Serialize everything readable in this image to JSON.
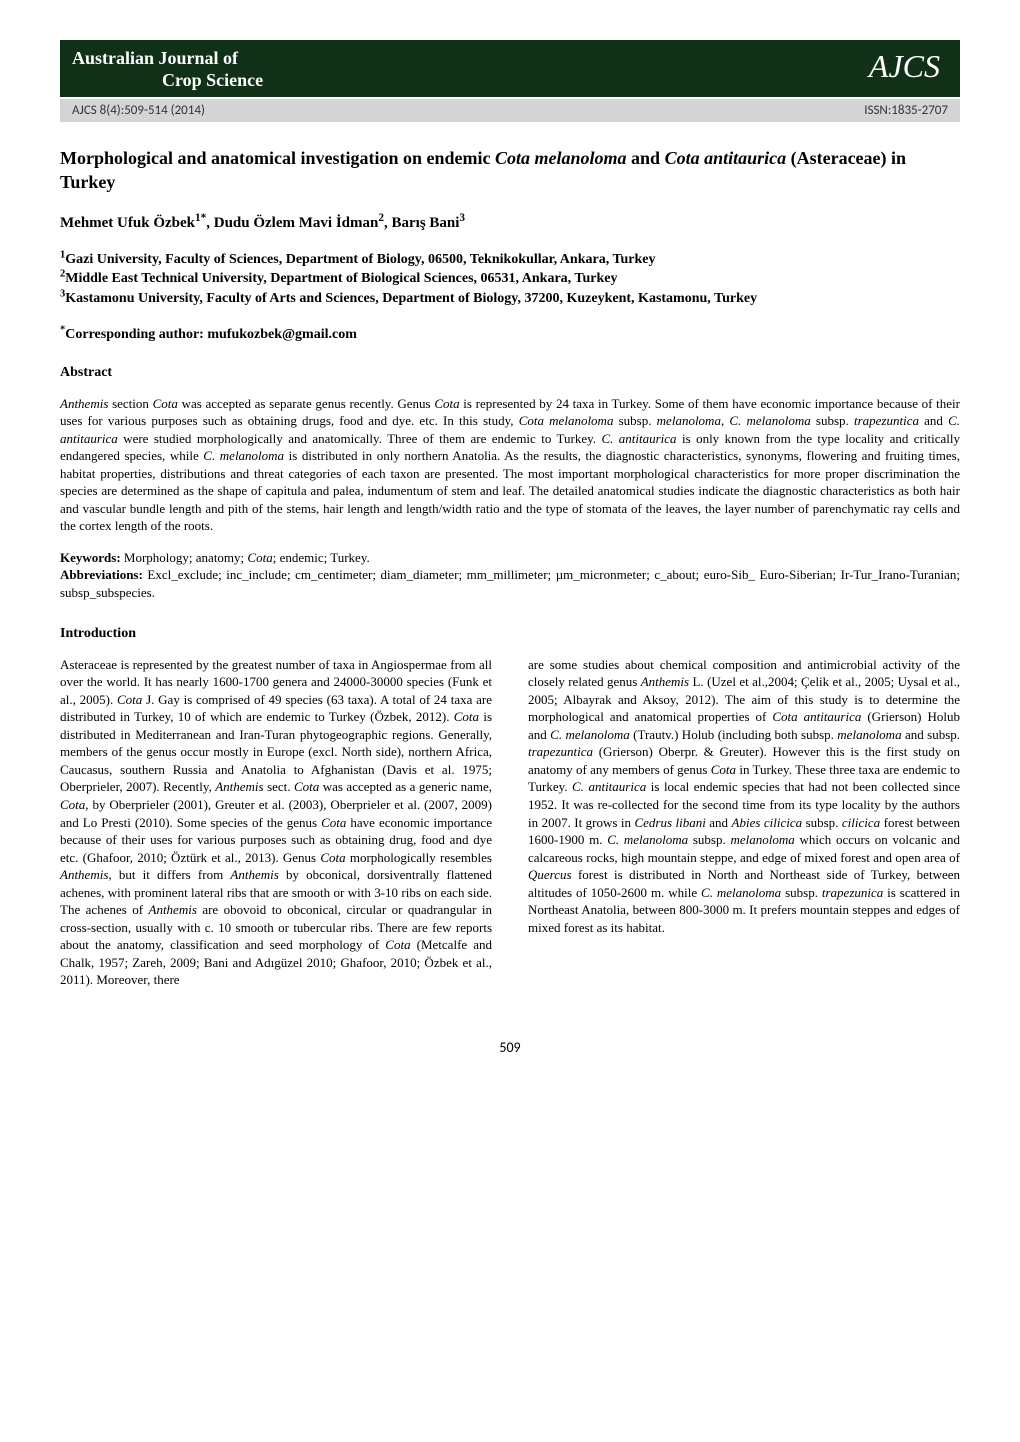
{
  "header": {
    "journal_line1": "Australian Journal of",
    "journal_line2": "Crop Science",
    "journal_abbrev": "AJCS",
    "citation": "AJCS 8(4):509-514 (2014)",
    "issn": "ISSN:1835-2707",
    "band_bg": "#103018",
    "meta_bg": "#d4d4d4"
  },
  "title": {
    "part1": "Morphological and anatomical investigation on endemic ",
    "italic1": "Cota melanoloma",
    "part2": " and ",
    "italic2": "Cota antitaurica",
    "part3": " (Asteraceae) in Turkey"
  },
  "authors": "Mehmet Ufuk Özbek1*, Dudu Özlem Mavi İdman2, Barış Bani3",
  "authors_parts": [
    {
      "text": "Mehmet Ufuk Özbek",
      "sup": "1*"
    },
    {
      "text": ", Dudu Özlem Mavi İdman",
      "sup": "2"
    },
    {
      "text": ", Barış Bani",
      "sup": "3"
    }
  ],
  "affiliations": [
    {
      "sup": "1",
      "text": "Gazi University, Faculty of Sciences, Department of Biology, 06500, Teknikokullar, Ankara, Turkey"
    },
    {
      "sup": "2",
      "text": "Middle East Technical University, Department of Biological Sciences, 06531, Ankara, Turkey"
    },
    {
      "sup": "3",
      "text": "Kastamonu University, Faculty of Arts and Sciences, Department of Biology, 37200, Kuzeykent, Kastamonu, Turkey"
    }
  ],
  "corresponding": {
    "sup": "*",
    "label": "Corresponding author: mufukozbek@gmail.com"
  },
  "abstract": {
    "heading": "Abstract",
    "runs": [
      {
        "i": true,
        "t": "Anthemis"
      },
      {
        "i": false,
        "t": " section "
      },
      {
        "i": true,
        "t": "Cota"
      },
      {
        "i": false,
        "t": " was accepted as separate genus recently. Genus "
      },
      {
        "i": true,
        "t": "Cota"
      },
      {
        "i": false,
        "t": " is represented by 24 taxa in Turkey. Some of them have economic importance because of their uses for various purposes such as obtaining drugs, food and dye. etc. In this study, "
      },
      {
        "i": true,
        "t": "Cota melanoloma"
      },
      {
        "i": false,
        "t": " subsp. "
      },
      {
        "i": true,
        "t": "melanoloma"
      },
      {
        "i": false,
        "t": ", "
      },
      {
        "i": true,
        "t": "C. melanoloma"
      },
      {
        "i": false,
        "t": " subsp. "
      },
      {
        "i": true,
        "t": "trapezuntica"
      },
      {
        "i": false,
        "t": " and "
      },
      {
        "i": true,
        "t": "C. antitaurica"
      },
      {
        "i": false,
        "t": " were studied morphologically and anatomically. Three of them are endemic to Turkey. "
      },
      {
        "i": true,
        "t": "C. antitaurica"
      },
      {
        "i": false,
        "t": " is only known from the type locality and critically endangered species, while "
      },
      {
        "i": true,
        "t": "C. melanoloma"
      },
      {
        "i": false,
        "t": " is distributed in only northern Anatolia. As the results, the diagnostic characteristics, synonyms, flowering and fruiting times, habitat properties, distributions and threat categories of each taxon are presented. The most important morphological characteristics for more proper discrimination the species are determined as the shape of capitula and palea, indumentum of stem and leaf. The detailed anatomical studies indicate the diagnostic characteristics as both hair and vascular bundle length and pith of the stems, hair length and length/width ratio and the type of stomata of the leaves, the layer number of parenchymatic ray cells and the cortex length of the roots."
      }
    ]
  },
  "keywords": {
    "label": "Keywords:",
    "runs": [
      {
        "i": false,
        "t": " Morphology; anatomy; "
      },
      {
        "i": true,
        "t": "Cota"
      },
      {
        "i": false,
        "t": "; endemic; Turkey."
      }
    ]
  },
  "abbreviations": {
    "label": "Abbreviations:",
    "text": " Excl_exclude; inc_include; cm_centimeter; diam_diameter; mm_millimeter; µm_micronmeter; c_about; euro-Sib_ Euro-Siberian; Ir-Tur_Irano-Turanian; subsp_subspecies."
  },
  "introduction": {
    "heading": "Introduction",
    "col1_runs": [
      {
        "i": false,
        "t": "Asteraceae is represented by the greatest number of taxa in Angiospermae from all over the world. It has nearly 1600-1700 genera and 24000-30000 species (Funk et al., 2005). "
      },
      {
        "i": true,
        "t": "Cota"
      },
      {
        "i": false,
        "t": " J. Gay is comprised of 49 species (63 taxa). A total of 24 taxa are distributed in Turkey, 10 of which are endemic to Turkey (Özbek, 2012). "
      },
      {
        "i": true,
        "t": "Cota"
      },
      {
        "i": false,
        "t": " is distributed in Mediterranean and Iran-Turan phytogeographic regions. Generally, members of the genus occur mostly in Europe (excl. North side), northern Africa, Caucasus, southern Russia and Anatolia to Afghanistan (Davis et al. 1975; Oberprieler, 2007). Recently, "
      },
      {
        "i": true,
        "t": "Anthemis"
      },
      {
        "i": false,
        "t": " sect. "
      },
      {
        "i": true,
        "t": "Cota"
      },
      {
        "i": false,
        "t": " was accepted as a generic name, "
      },
      {
        "i": true,
        "t": "Cota"
      },
      {
        "i": false,
        "t": ", by Oberprieler (2001), Greuter et al. (2003), Oberprieler et al. (2007, 2009) and Lo Presti (2010).  Some species of the genus "
      },
      {
        "i": true,
        "t": "Cota"
      },
      {
        "i": false,
        "t": " have economic importance because of their uses for various purposes such as obtaining drug, food and dye etc. (Ghafoor, 2010; Öztürk et al., 2013). Genus "
      },
      {
        "i": true,
        "t": "Cota"
      },
      {
        "i": false,
        "t": " morphologically resembles "
      },
      {
        "i": true,
        "t": "Anthemis"
      },
      {
        "i": false,
        "t": ", but it differs from "
      },
      {
        "i": true,
        "t": "Anthemis"
      },
      {
        "i": false,
        "t": " by obconical, dorsiventrally flattened achenes, with prominent lateral ribs that are smooth or with 3-10 ribs on each side. The achenes of "
      },
      {
        "i": true,
        "t": "Anthemis"
      },
      {
        "i": false,
        "t": " are obovoid to obconical, circular or quadrangular in cross-section, usually with c. 10 smooth or tubercular ribs. There are few reports about the anatomy, classification and seed morphology of "
      },
      {
        "i": true,
        "t": "Cota"
      },
      {
        "i": false,
        "t": " (Metcalfe and Chalk, 1957; Zareh, 2009; Bani and Adıgüzel 2010; Ghafoor, 2010; Özbek et al., 2011). Moreover, there"
      }
    ],
    "col2_runs": [
      {
        "i": false,
        "t": "are some studies about chemical composition and antimicrobial activity of the closely related genus "
      },
      {
        "i": true,
        "t": "Anthemis"
      },
      {
        "i": false,
        "t": " L. (Uzel et al.,2004; Çelik et al., 2005; Uysal et al., 2005; Albayrak and Aksoy, 2012). The aim of this study is to determine the morphological and anatomical properties of "
      },
      {
        "i": true,
        "t": "Cota antitaurica"
      },
      {
        "i": false,
        "t": " (Grierson) Holub and "
      },
      {
        "i": true,
        "t": "C. melanoloma"
      },
      {
        "i": false,
        "t": " (Trautv.) Holub (including both subsp. "
      },
      {
        "i": true,
        "t": "melanoloma"
      },
      {
        "i": false,
        "t": " and subsp. "
      },
      {
        "i": true,
        "t": "trapezuntica"
      },
      {
        "i": false,
        "t": " (Grierson) Oberpr. & Greuter). However this is the first study on anatomy of any members of genus "
      },
      {
        "i": true,
        "t": "Cota"
      },
      {
        "i": false,
        "t": " in Turkey. These three taxa are endemic to Turkey. "
      },
      {
        "i": true,
        "t": "C. antitaurica"
      },
      {
        "i": false,
        "t": " is local endemic species that had not been collected since 1952. It was re-collected for the second time from its type locality by the authors in 2007. It grows in "
      },
      {
        "i": true,
        "t": "Cedrus libani"
      },
      {
        "i": false,
        "t": " and "
      },
      {
        "i": true,
        "t": "Abies cilicica"
      },
      {
        "i": false,
        "t": " subsp. "
      },
      {
        "i": true,
        "t": "cilicica"
      },
      {
        "i": false,
        "t": " forest between 1600-1900 m. "
      },
      {
        "i": true,
        "t": "C. melanoloma"
      },
      {
        "i": false,
        "t": " subsp. "
      },
      {
        "i": true,
        "t": "melanoloma"
      },
      {
        "i": false,
        "t": " which occurs on volcanic and calcareous rocks, high mountain steppe, and edge of mixed forest and open area of "
      },
      {
        "i": true,
        "t": "Quercus"
      },
      {
        "i": false,
        "t": " forest is distributed in North and Northeast side of Turkey, between altitudes of 1050-2600 m. while "
      },
      {
        "i": true,
        "t": "C. melanoloma"
      },
      {
        "i": false,
        "t": " subsp. "
      },
      {
        "i": true,
        "t": "trapezunica"
      },
      {
        "i": false,
        "t": " is scattered in Northeast Anatolia, between 800-3000 m. It prefers mountain steppes and edges of mixed forest as its habitat."
      }
    ]
  },
  "page_number": "509"
}
